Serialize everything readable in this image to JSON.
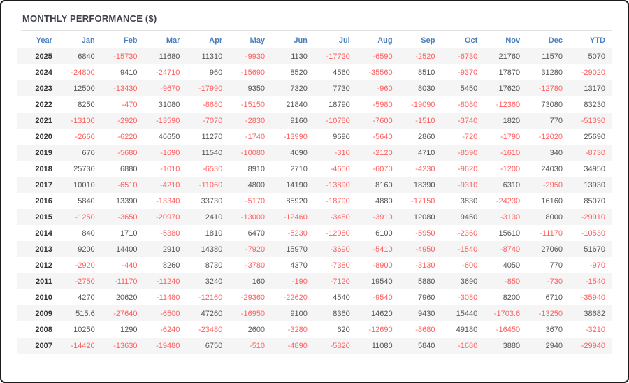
{
  "widget": {
    "title": "MONTHLY PERFORMANCE ($)"
  },
  "colors": {
    "header_text": "#4a7ebc",
    "negative_value": "#ff5f5f",
    "positive_value": "#555555",
    "year_text": "#333333",
    "row_stripe": "#f5f5f5",
    "title_text": "#3f414c",
    "outer_border": "#1c1c1c"
  },
  "chart_data": {
    "type": "table",
    "title": "MONTHLY PERFORMANCE ($)",
    "columns": [
      "Year",
      "Jan",
      "Feb",
      "Mar",
      "Apr",
      "May",
      "Jun",
      "Jul",
      "Aug",
      "Sep",
      "Oct",
      "Nov",
      "Dec",
      "YTD"
    ],
    "rows": [
      {
        "year": "2025",
        "values": [
          6840,
          -15730,
          11680,
          11310,
          -9930,
          1130,
          -17720,
          -6590,
          -2520,
          -6730,
          21760,
          11570,
          5070
        ]
      },
      {
        "year": "2024",
        "values": [
          -24800,
          9410,
          -24710,
          960,
          -15690,
          8520,
          4560,
          -35560,
          8510,
          -9370,
          17870,
          31280,
          -29020
        ]
      },
      {
        "year": "2023",
        "values": [
          12500,
          -13430,
          -9670,
          -17990,
          9350,
          7320,
          7730,
          -960,
          8030,
          5450,
          17620,
          -12780,
          13170
        ]
      },
      {
        "year": "2022",
        "values": [
          8250,
          -470,
          31080,
          -8680,
          -15150,
          21840,
          18790,
          -5980,
          -19090,
          -8080,
          -12360,
          73080,
          83230
        ]
      },
      {
        "year": "2021",
        "values": [
          -13100,
          -2920,
          -13590,
          -7070,
          -2830,
          9160,
          -10780,
          -7600,
          -1510,
          -3740,
          1820,
          770,
          -51390
        ]
      },
      {
        "year": "2020",
        "values": [
          -2660,
          -6220,
          46650,
          11270,
          -1740,
          -13990,
          9690,
          -5640,
          2860,
          -720,
          -1790,
          -12020,
          25690
        ]
      },
      {
        "year": "2019",
        "values": [
          670,
          -5680,
          -1690,
          11540,
          -10080,
          4090,
          -310,
          -2120,
          4710,
          -8590,
          -1610,
          340,
          -8730
        ]
      },
      {
        "year": "2018",
        "values": [
          25730,
          6880,
          -1010,
          -6530,
          8910,
          2710,
          -4650,
          -6070,
          -4230,
          -9620,
          -1200,
          24030,
          34950
        ]
      },
      {
        "year": "2017",
        "values": [
          10010,
          -6510,
          -4210,
          -11060,
          4800,
          14190,
          -13890,
          8160,
          18390,
          -9310,
          6310,
          -2950,
          13930
        ]
      },
      {
        "year": "2016",
        "values": [
          5840,
          13390,
          -13340,
          33730,
          -5170,
          85920,
          -18790,
          4880,
          -17150,
          3830,
          -24230,
          16160,
          85070
        ]
      },
      {
        "year": "2015",
        "values": [
          -1250,
          -3650,
          -20970,
          2410,
          -13000,
          -12460,
          -3480,
          -3910,
          12080,
          9450,
          -3130,
          8000,
          -29910
        ]
      },
      {
        "year": "2014",
        "values": [
          840,
          1710,
          -5380,
          1810,
          6470,
          -5230,
          -12980,
          6100,
          -5950,
          -2360,
          15610,
          -11170,
          -10530
        ]
      },
      {
        "year": "2013",
        "values": [
          9200,
          14400,
          2910,
          14380,
          -7920,
          15970,
          -3690,
          -5410,
          -4950,
          -1540,
          -8740,
          27060,
          51670
        ]
      },
      {
        "year": "2012",
        "values": [
          -2920,
          -440,
          8260,
          8730,
          -3780,
          4370,
          -7380,
          -8900,
          -3130,
          -600,
          4050,
          770,
          -970
        ]
      },
      {
        "year": "2011",
        "values": [
          -2750,
          -11170,
          -11240,
          3240,
          160,
          -190,
          -7120,
          19540,
          5880,
          3690,
          -850,
          -730,
          -1540
        ]
      },
      {
        "year": "2010",
        "values": [
          4270,
          20620,
          -11480,
          -12160,
          -29360,
          -22620,
          4540,
          -9540,
          7960,
          -3080,
          8200,
          6710,
          -35940
        ]
      },
      {
        "year": "2009",
        "values": [
          515.6,
          -27640,
          -6500,
          47260,
          -16950,
          9100,
          8360,
          14620,
          9430,
          15440,
          -1703.6,
          -13250,
          38682
        ]
      },
      {
        "year": "2008",
        "values": [
          10250,
          1290,
          -6240,
          -23480,
          2600,
          -3280,
          620,
          -12690,
          -8680,
          49180,
          -16450,
          3670,
          -3210
        ]
      },
      {
        "year": "2007",
        "values": [
          -14420,
          -13630,
          -19480,
          6750,
          -510,
          -4890,
          -5820,
          11080,
          5840,
          -1680,
          3880,
          2940,
          -29940
        ]
      }
    ]
  }
}
